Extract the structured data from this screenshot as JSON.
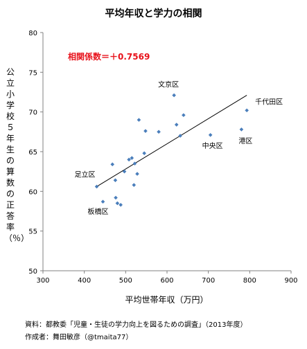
{
  "chart_data": {
    "type": "scatter",
    "title": "平均年収と学力の相関",
    "xlabel": "平均世帯年収（万円）",
    "ylabel": "公立小学校５年生の算数の正答率（％）",
    "xlim": [
      300,
      900
    ],
    "ylim": [
      50,
      80
    ],
    "x_ticks": [
      "300",
      "400",
      "500",
      "600",
      "700",
      "800",
      "900"
    ],
    "y_ticks": [
      "50",
      "55",
      "60",
      "65",
      "70",
      "75",
      "80"
    ],
    "grid": false,
    "marker_color": "#4a7ebb",
    "points": [
      {
        "x": 430,
        "y": 60.6,
        "label": "足立区"
      },
      {
        "x": 445,
        "y": 58.7,
        "label": "板橋区"
      },
      {
        "x": 468,
        "y": 63.4
      },
      {
        "x": 475,
        "y": 61.4
      },
      {
        "x": 476,
        "y": 59.2
      },
      {
        "x": 480,
        "y": 58.5
      },
      {
        "x": 488,
        "y": 58.3
      },
      {
        "x": 497,
        "y": 62.5
      },
      {
        "x": 508,
        "y": 64.0
      },
      {
        "x": 515,
        "y": 64.2
      },
      {
        "x": 520,
        "y": 60.8
      },
      {
        "x": 522,
        "y": 63.5
      },
      {
        "x": 528,
        "y": 62.2
      },
      {
        "x": 532,
        "y": 69.0
      },
      {
        "x": 545,
        "y": 64.8
      },
      {
        "x": 548,
        "y": 67.6
      },
      {
        "x": 580,
        "y": 67.5
      },
      {
        "x": 617,
        "y": 72.1,
        "label": "文京区"
      },
      {
        "x": 623,
        "y": 68.4
      },
      {
        "x": 632,
        "y": 67.0
      },
      {
        "x": 640,
        "y": 69.6
      },
      {
        "x": 705,
        "y": 67.1,
        "label": "中央区"
      },
      {
        "x": 780,
        "y": 67.8,
        "label": "港区"
      },
      {
        "x": 793,
        "y": 70.2,
        "label": "千代田区"
      }
    ],
    "trendline": {
      "x": [
        430,
        793
      ],
      "y": [
        60.6,
        72.1
      ]
    },
    "annotation": {
      "text": "相関係数＝＋0.7569",
      "color": "#e8121b"
    }
  },
  "source_text": "資料：都教委「児童・生徒の学力向上を図るための調査」（2013年度）",
  "author_text": "作成者：舞田敏彦（@tmaita77）"
}
